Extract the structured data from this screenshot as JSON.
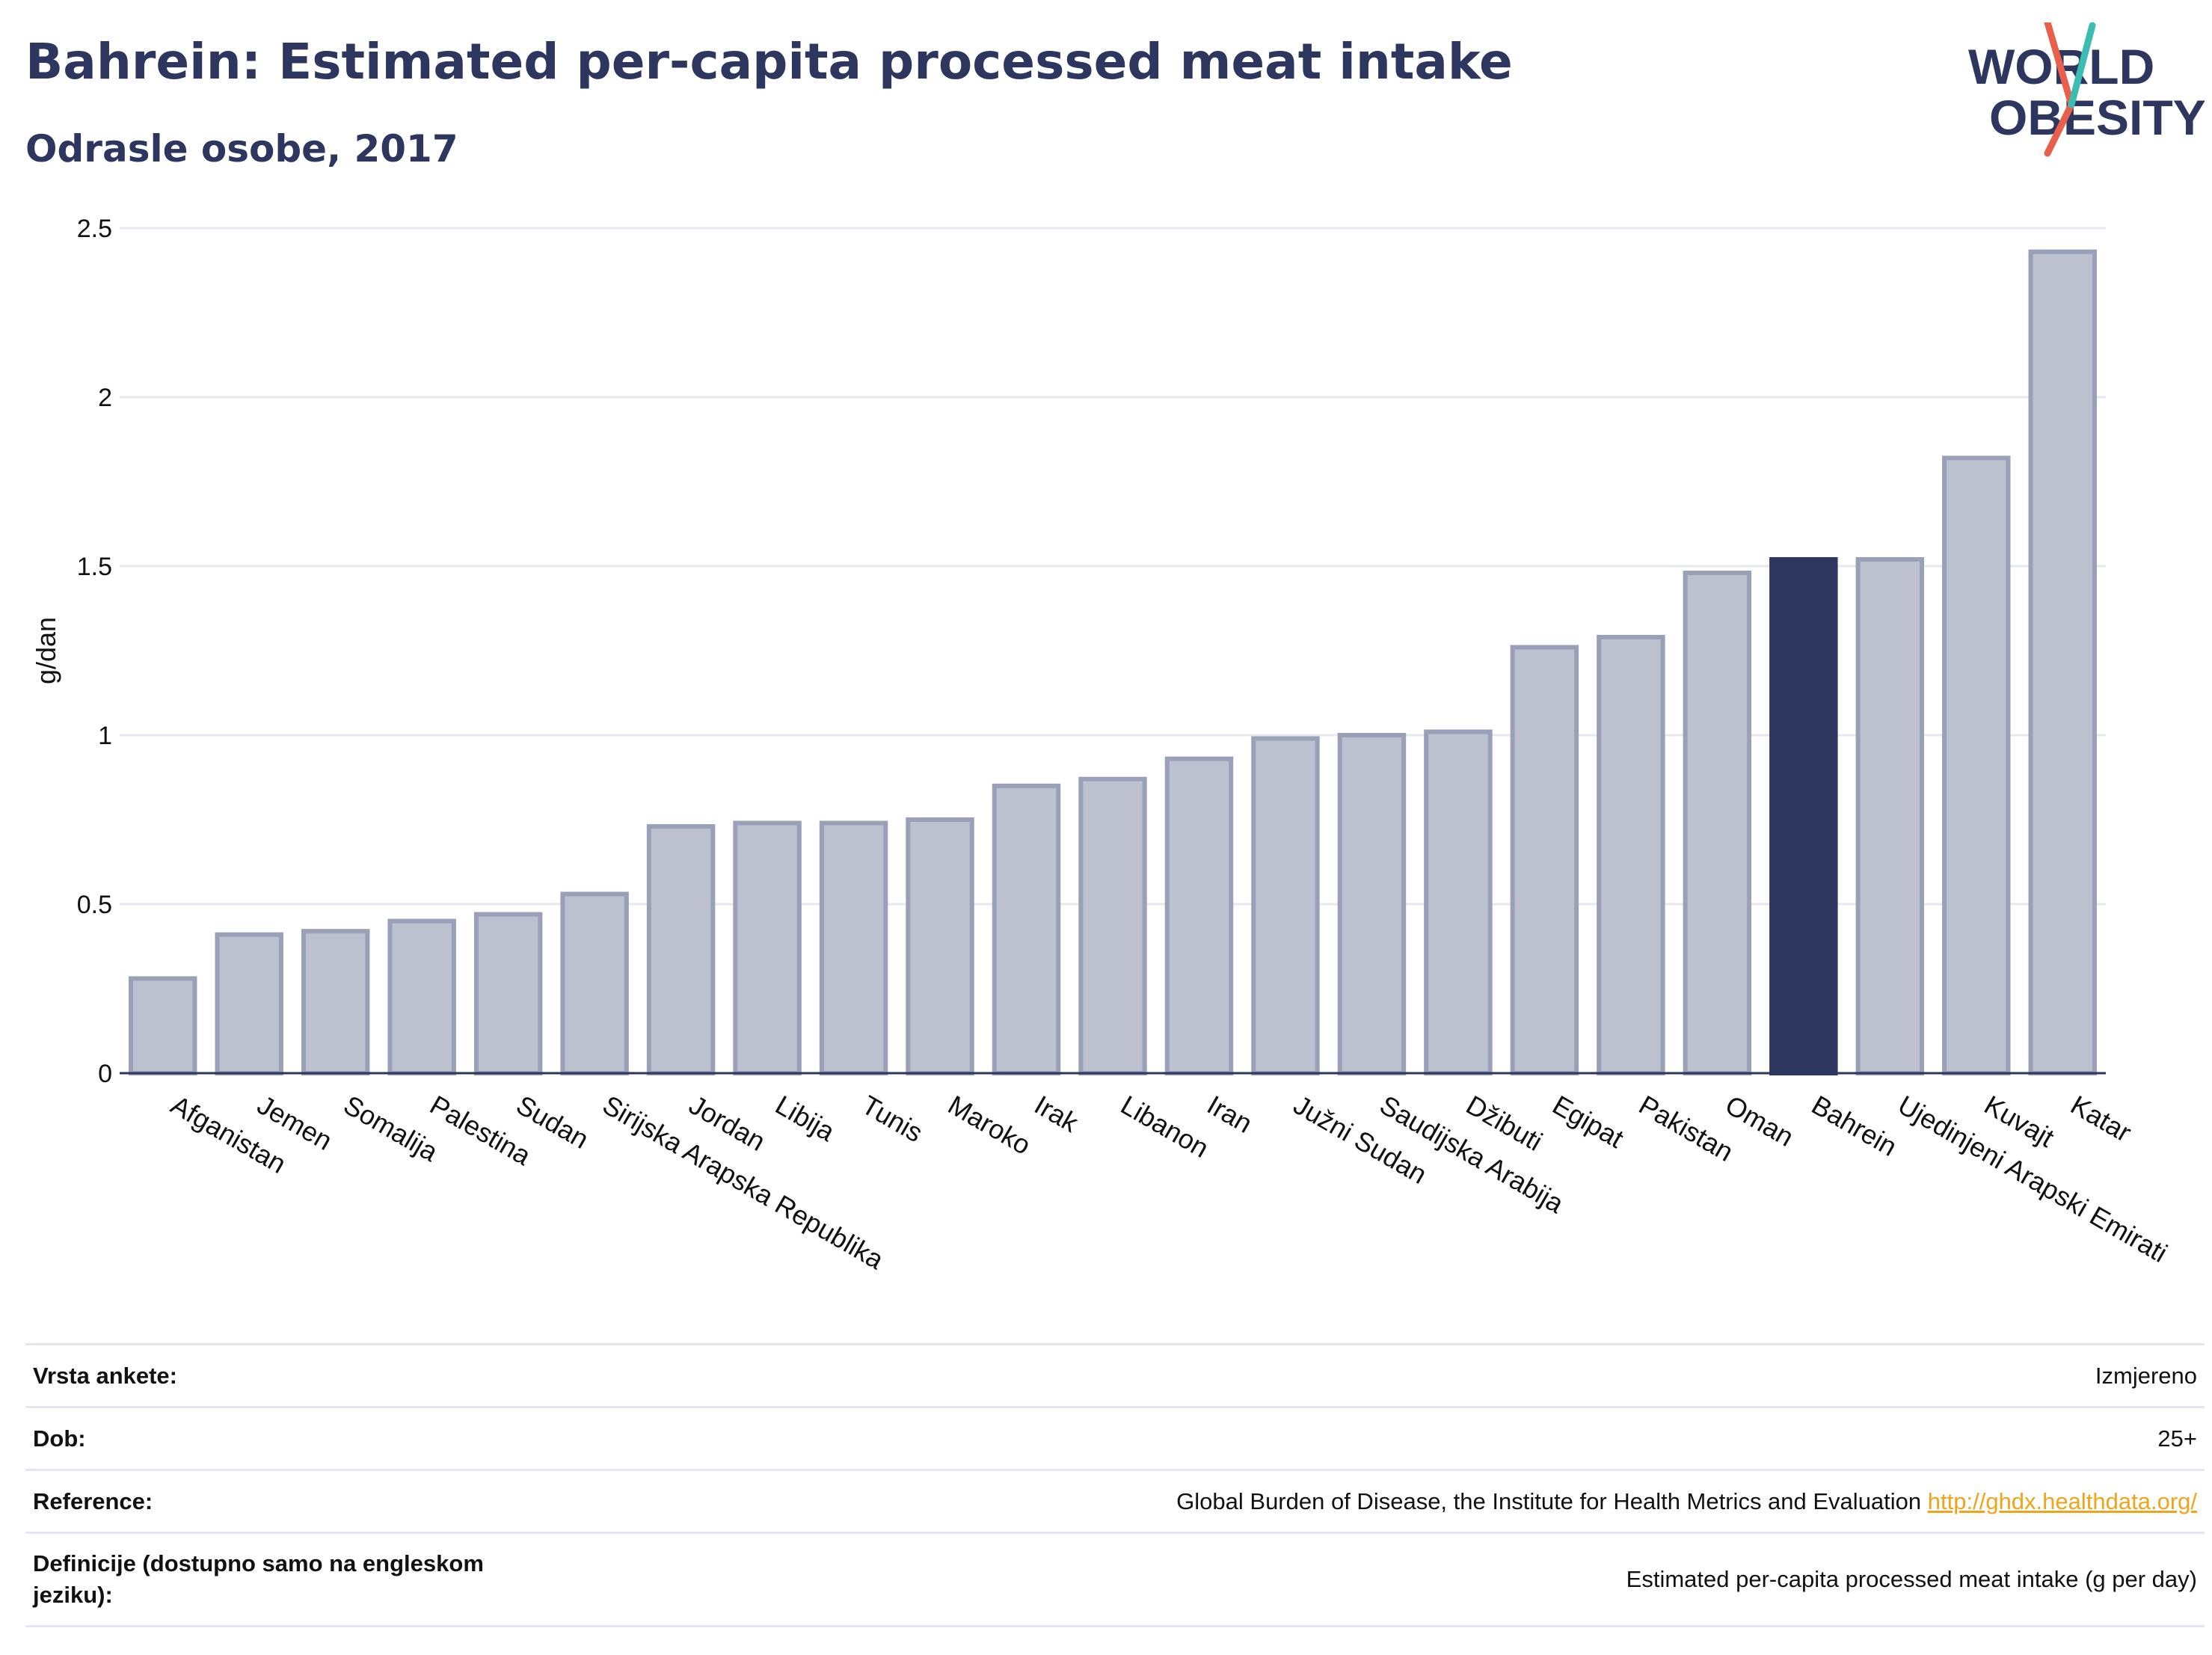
{
  "header": {
    "title": "Bahrein: Estimated per-capita processed meat intake",
    "subtitle": "Odrasle osobe, 2017"
  },
  "logo": {
    "line1": "WORLD",
    "line2": "OBESITY",
    "colors": [
      "#2c365e",
      "#e8604c",
      "#3dbdb2"
    ]
  },
  "colors": {
    "highlight": "#2c365e",
    "bar_fill": "#bcc0cf",
    "bar_stroke": "#9aa0b8",
    "grid": "#e6e8ef",
    "link": "#f0a41c"
  },
  "chart_data": {
    "type": "bar",
    "title": "Bahrein: Estimated per-capita processed meat intake",
    "subtitle": "Odrasle osobe, 2017",
    "ylabel": "g/dan",
    "ylim": [
      0,
      2.5
    ],
    "yticks": [
      0,
      0.5,
      1,
      1.5,
      2,
      2.5
    ],
    "ytick_labels": [
      "0",
      "0.5",
      "1",
      "1.5",
      "2",
      "2.5"
    ],
    "highlight": "Bahrein",
    "grid": true,
    "categories": [
      "Afganistan",
      "Jemen",
      "Somalija",
      "Palestina",
      "Sudan",
      "Sirijska Arapska Republika",
      "Jordan",
      "Libija",
      "Tunis",
      "Maroko",
      "Irak",
      "Libanon",
      "Iran",
      "Južni Sudan",
      "Saudijska Arabija",
      "Džibuti",
      "Egipat",
      "Pakistan",
      "Oman",
      "Bahrein",
      "Ujedinjeni Arapski Emirati",
      "Kuvajt",
      "Katar"
    ],
    "values": [
      0.28,
      0.41,
      0.42,
      0.45,
      0.47,
      0.53,
      0.73,
      0.74,
      0.74,
      0.75,
      0.85,
      0.87,
      0.93,
      0.99,
      1.0,
      1.01,
      1.26,
      1.29,
      1.48,
      1.52,
      1.52,
      1.82,
      2.43
    ]
  },
  "meta": {
    "rows": [
      {
        "label": "Vrsta ankete:",
        "value": "Izmjereno"
      },
      {
        "label": "Dob:",
        "value": "25+"
      },
      {
        "label": "Reference:",
        "value": "Global Burden of Disease, the Institute for Health Metrics and Evaluation",
        "link": "http://ghdx.healthdata.org/"
      },
      {
        "label": "Definicije (dostupno samo na engleskom jeziku):",
        "value": "Estimated per-capita processed meat intake (g per day)"
      }
    ]
  }
}
